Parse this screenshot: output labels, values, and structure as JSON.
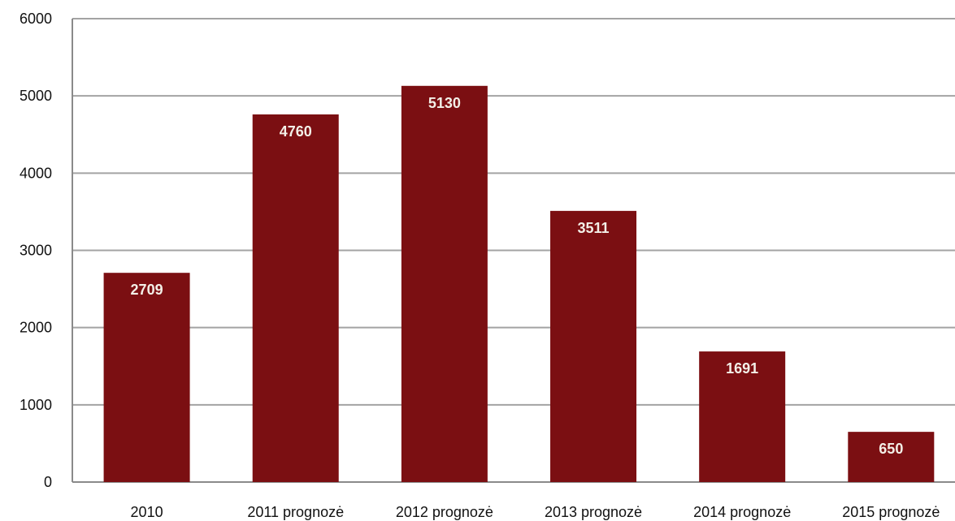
{
  "chart_data": {
    "type": "bar",
    "categories": [
      "2010",
      "2011 prognozė",
      "2012 prognozė",
      "2013 prognozė",
      "2014 prognozė",
      "2015 prognozė"
    ],
    "values": [
      2709,
      4760,
      5130,
      3511,
      1691,
      650
    ],
    "data_labels": [
      "2709",
      "4760",
      "5130",
      "3511",
      "1691",
      "650"
    ],
    "yticks": [
      "0",
      "1000",
      "2000",
      "3000",
      "4000",
      "5000",
      "6000"
    ],
    "ylim": [
      0,
      6000
    ],
    "grid": true,
    "legend": "none",
    "bar_color": "#7b0f12",
    "label_color": "#f3efe7",
    "grid_color": "#a3a3a3",
    "axis_color": "#8a8a8a"
  }
}
